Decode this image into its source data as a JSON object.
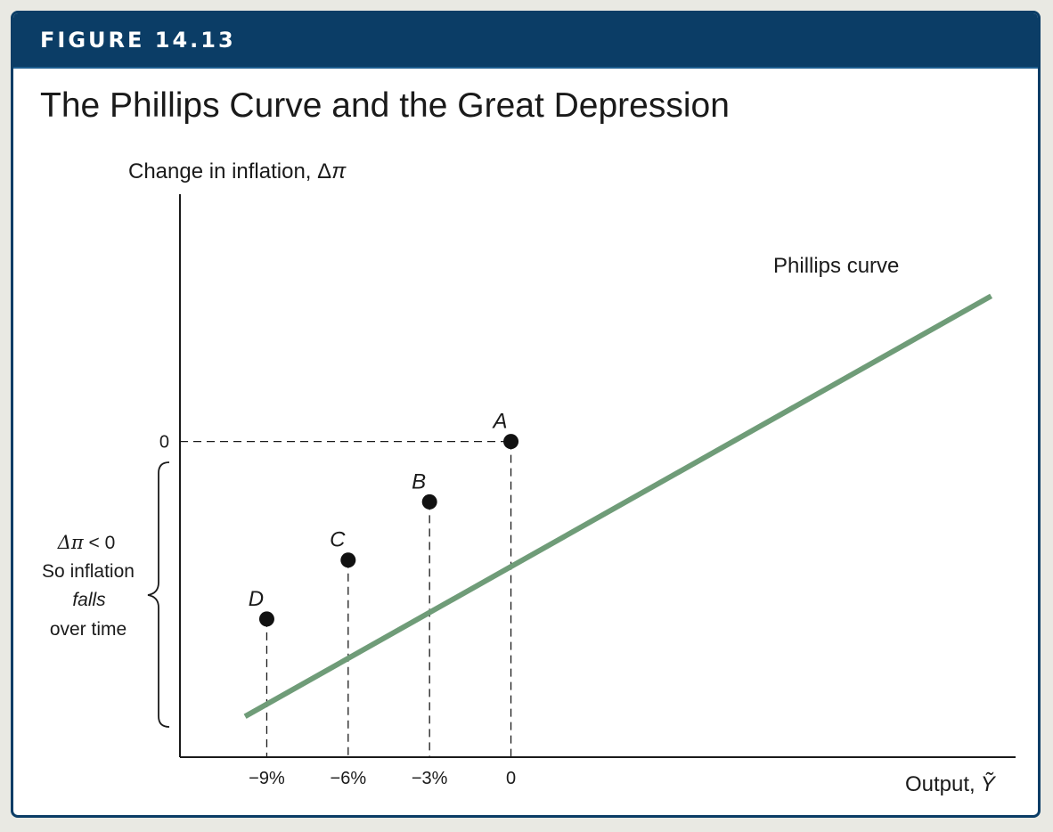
{
  "figure": {
    "number": "FIGURE 14.13",
    "title": "The Phillips Curve and the Great Depression"
  },
  "colors": {
    "banner": "#0b3d66",
    "curve": "#6f9c78",
    "axis": "#1a1a1a",
    "point": "#111111"
  },
  "chart_data": {
    "type": "line",
    "title": "The Phillips Curve and the Great Depression",
    "ylabel": "Change in inflation, Δ",
    "ylabel_symbol": "π",
    "xlabel": "Output,",
    "xlabel_symbol": "Ỹ",
    "xlim": [
      -12.2,
      18.6
    ],
    "ylim": [
      -4.34,
      3.4
    ],
    "x_ticks": [
      {
        "value": -9,
        "label": "−9%"
      },
      {
        "value": -6,
        "label": "−6%"
      },
      {
        "value": -3,
        "label": "−3%"
      },
      {
        "value": 0,
        "label": "0"
      }
    ],
    "y_ticks": [
      {
        "value": 0,
        "label": "0"
      }
    ],
    "series": [
      {
        "name": "Phillips curve",
        "line": {
          "x": [
            -9.8,
            17.7
          ],
          "y": [
            -3.78,
            2.0
          ]
        }
      }
    ],
    "points": [
      {
        "label": "A",
        "x": 0,
        "y": 0
      },
      {
        "label": "B",
        "x": -3,
        "y": -0.83
      },
      {
        "label": "C",
        "x": -6,
        "y": -1.63
      },
      {
        "label": "D",
        "x": -9,
        "y": -2.44
      }
    ],
    "annotation": {
      "line1_symbols": "Δπ",
      "line1_rest": " < 0",
      "line2": "So inflation",
      "line3": "falls",
      "line4": "over time"
    },
    "grid": false,
    "legend": "none"
  }
}
